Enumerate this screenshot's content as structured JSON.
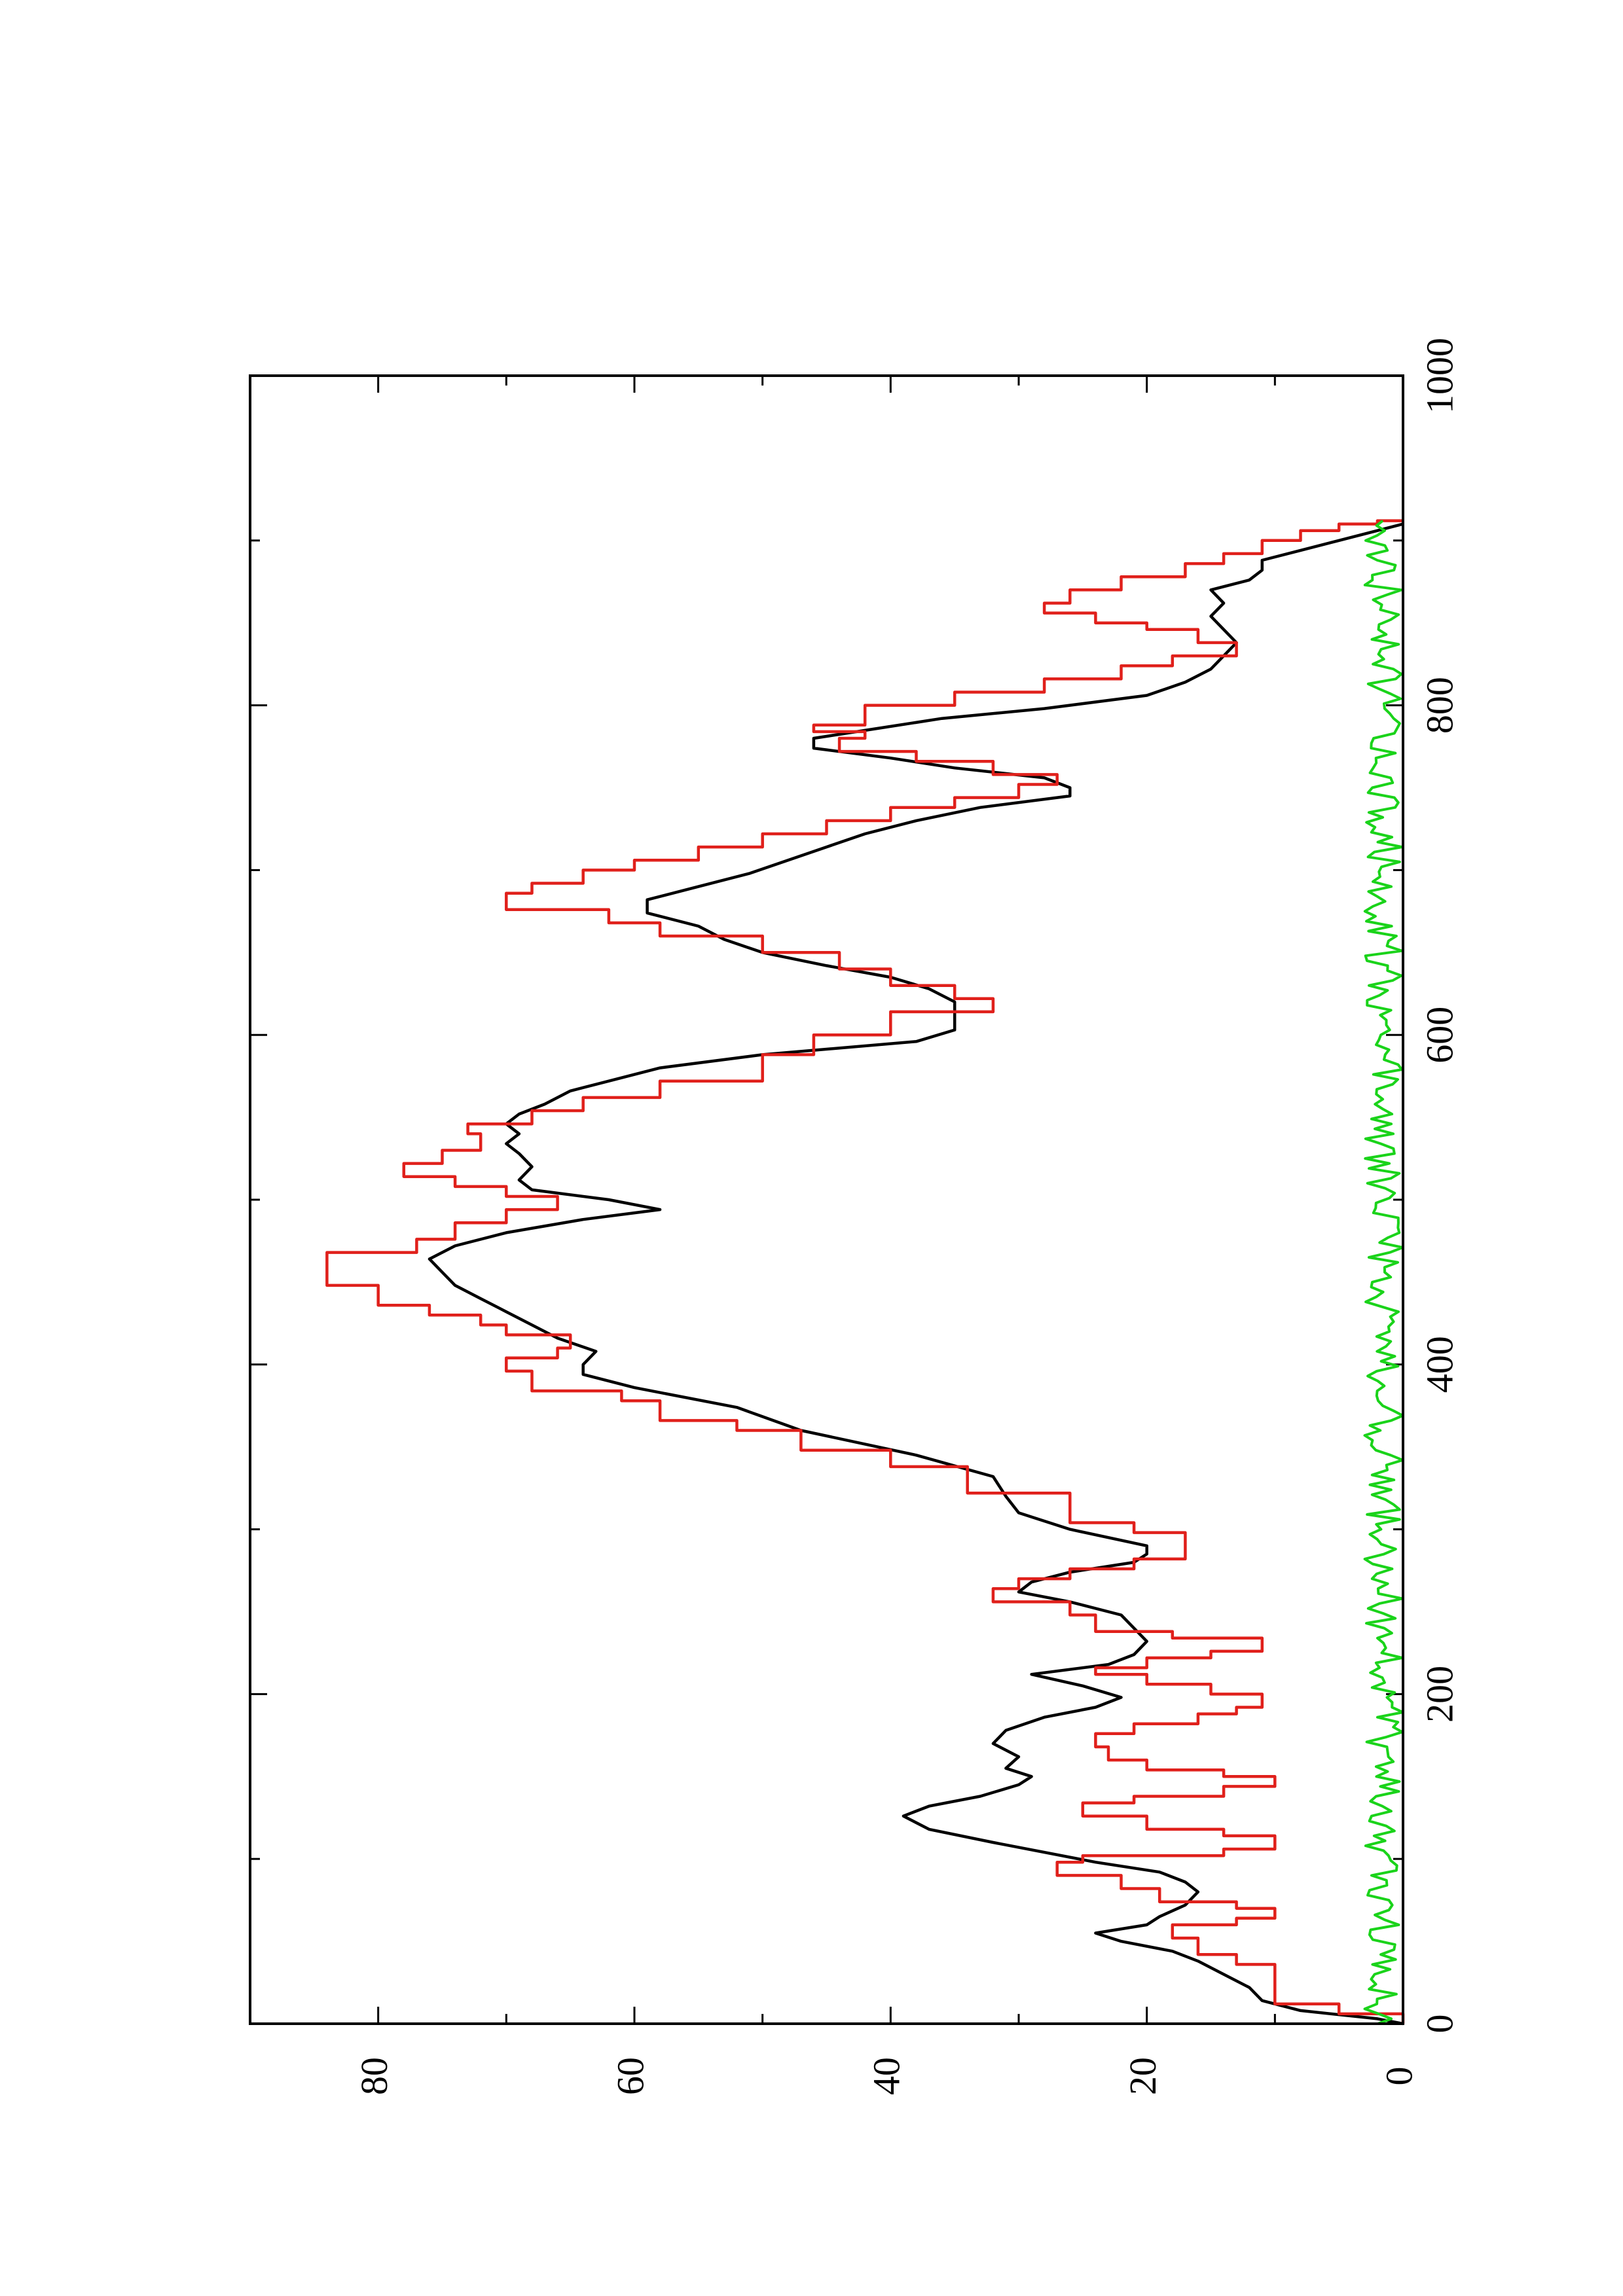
{
  "chart_data": {
    "type": "line",
    "orientation": "rotated-90-ccw",
    "title": "",
    "xlabel": "",
    "ylabel": "",
    "xlim": [
      0,
      1000
    ],
    "ylim": [
      0,
      90
    ],
    "grid": false,
    "legend": "none",
    "x_ticks": [
      0,
      200,
      400,
      600,
      800,
      1000
    ],
    "x_tick_labels": [
      "0",
      "200",
      "400",
      "600",
      "800",
      "1000"
    ],
    "x_minor_ticks": [
      100,
      300,
      500,
      700,
      900
    ],
    "y_ticks": [
      0,
      20,
      40,
      60,
      80
    ],
    "y_tick_labels": [
      "0",
      "20",
      "40",
      "60",
      "80"
    ],
    "y_minor_ticks": [
      10,
      30,
      50,
      70
    ],
    "series": [
      {
        "color": "#000000",
        "kind": "smooth",
        "points": [
          [
            0,
            0
          ],
          [
            3,
            2
          ],
          [
            8,
            8
          ],
          [
            14,
            11
          ],
          [
            22,
            12
          ],
          [
            30,
            14
          ],
          [
            38,
            16
          ],
          [
            44,
            18
          ],
          [
            50,
            22
          ],
          [
            55,
            24
          ],
          [
            60,
            20
          ],
          [
            65,
            19
          ],
          [
            72,
            17
          ],
          [
            80,
            16
          ],
          [
            86,
            17
          ],
          [
            92,
            19
          ],
          [
            98,
            24
          ],
          [
            104,
            28
          ],
          [
            110,
            32
          ],
          [
            118,
            37
          ],
          [
            126,
            39
          ],
          [
            132,
            37
          ],
          [
            138,
            33
          ],
          [
            145,
            30
          ],
          [
            150,
            29
          ],
          [
            155,
            31
          ],
          [
            162,
            30
          ],
          [
            170,
            32
          ],
          [
            178,
            31
          ],
          [
            186,
            28
          ],
          [
            192,
            24
          ],
          [
            198,
            22
          ],
          [
            205,
            25
          ],
          [
            212,
            29
          ],
          [
            218,
            23
          ],
          [
            224,
            21
          ],
          [
            232,
            20
          ],
          [
            240,
            21
          ],
          [
            248,
            22
          ],
          [
            256,
            26
          ],
          [
            262,
            30
          ],
          [
            268,
            29
          ],
          [
            274,
            26
          ],
          [
            280,
            21
          ],
          [
            285,
            20
          ],
          [
            290,
            20
          ],
          [
            300,
            26
          ],
          [
            310,
            30
          ],
          [
            320,
            31
          ],
          [
            332,
            32
          ],
          [
            345,
            38
          ],
          [
            360,
            47
          ],
          [
            374,
            52
          ],
          [
            386,
            60
          ],
          [
            394,
            64
          ],
          [
            400,
            64
          ],
          [
            408,
            63
          ],
          [
            416,
            66
          ],
          [
            424,
            68
          ],
          [
            432,
            70
          ],
          [
            440,
            72
          ],
          [
            448,
            74
          ],
          [
            456,
            75
          ],
          [
            464,
            76
          ],
          [
            472,
            74
          ],
          [
            480,
            70
          ],
          [
            488,
            64
          ],
          [
            494,
            58
          ],
          [
            500,
            62
          ],
          [
            506,
            68
          ],
          [
            512,
            69
          ],
          [
            520,
            68
          ],
          [
            528,
            69
          ],
          [
            534,
            70
          ],
          [
            540,
            69
          ],
          [
            546,
            70
          ],
          [
            552,
            69
          ],
          [
            558,
            67
          ],
          [
            566,
            65
          ],
          [
            574,
            61
          ],
          [
            580,
            58
          ],
          [
            588,
            50
          ],
          [
            596,
            38
          ],
          [
            603,
            35
          ],
          [
            612,
            35
          ],
          [
            620,
            35
          ],
          [
            628,
            37
          ],
          [
            635,
            40
          ],
          [
            642,
            45
          ],
          [
            650,
            50
          ],
          [
            658,
            53
          ],
          [
            666,
            55
          ],
          [
            674,
            59
          ],
          [
            682,
            59
          ],
          [
            690,
            55
          ],
          [
            698,
            51
          ],
          [
            706,
            48
          ],
          [
            714,
            45
          ],
          [
            722,
            42
          ],
          [
            730,
            38
          ],
          [
            738,
            33
          ],
          [
            745,
            26
          ],
          [
            750,
            26
          ],
          [
            756,
            28
          ],
          [
            762,
            35
          ],
          [
            768,
            40
          ],
          [
            774,
            46
          ],
          [
            780,
            46
          ],
          [
            786,
            41
          ],
          [
            792,
            36
          ],
          [
            798,
            28
          ],
          [
            806,
            20
          ],
          [
            814,
            17
          ],
          [
            822,
            15
          ],
          [
            830,
            14
          ],
          [
            838,
            13
          ],
          [
            846,
            14
          ],
          [
            854,
            15
          ],
          [
            862,
            14
          ],
          [
            870,
            15
          ],
          [
            876,
            12
          ],
          [
            882,
            11
          ],
          [
            888,
            11
          ],
          [
            894,
            8
          ],
          [
            900,
            5
          ],
          [
            906,
            2
          ],
          [
            910,
            0
          ]
        ]
      },
      {
        "color": "#e0201b",
        "kind": "step",
        "points": [
          [
            0,
            0
          ],
          [
            6,
            5
          ],
          [
            12,
            10
          ],
          [
            36,
            13
          ],
          [
            42,
            16
          ],
          [
            52,
            18
          ],
          [
            60,
            13
          ],
          [
            64,
            10
          ],
          [
            70,
            13
          ],
          [
            74,
            19
          ],
          [
            82,
            22
          ],
          [
            90,
            27
          ],
          [
            98,
            25
          ],
          [
            102,
            14
          ],
          [
            106,
            10
          ],
          [
            114,
            14
          ],
          [
            118,
            20
          ],
          [
            126,
            25
          ],
          [
            134,
            21
          ],
          [
            138,
            14
          ],
          [
            144,
            10
          ],
          [
            150,
            14
          ],
          [
            154,
            20
          ],
          [
            160,
            23
          ],
          [
            168,
            24
          ],
          [
            176,
            21
          ],
          [
            182,
            16
          ],
          [
            188,
            13
          ],
          [
            192,
            11
          ],
          [
            200,
            15
          ],
          [
            206,
            20
          ],
          [
            212,
            24
          ],
          [
            216,
            20
          ],
          [
            222,
            15
          ],
          [
            226,
            11
          ],
          [
            234,
            18
          ],
          [
            238,
            24
          ],
          [
            248,
            26
          ],
          [
            256,
            32
          ],
          [
            264,
            30
          ],
          [
            270,
            26
          ],
          [
            276,
            21
          ],
          [
            282,
            17
          ],
          [
            290,
            17
          ],
          [
            298,
            21
          ],
          [
            304,
            26
          ],
          [
            316,
            26
          ],
          [
            322,
            34
          ],
          [
            338,
            40
          ],
          [
            348,
            47
          ],
          [
            360,
            52
          ],
          [
            366,
            58
          ],
          [
            378,
            61
          ],
          [
            384,
            68
          ],
          [
            396,
            70
          ],
          [
            404,
            66
          ],
          [
            410,
            65
          ],
          [
            418,
            70
          ],
          [
            424,
            72
          ],
          [
            430,
            76
          ],
          [
            436,
            80
          ],
          [
            448,
            84
          ],
          [
            460,
            84
          ],
          [
            468,
            77
          ],
          [
            476,
            74
          ],
          [
            486,
            70
          ],
          [
            494,
            66
          ],
          [
            502,
            70
          ],
          [
            508,
            74
          ],
          [
            514,
            78
          ],
          [
            522,
            75
          ],
          [
            530,
            72
          ],
          [
            540,
            73
          ],
          [
            546,
            68
          ],
          [
            554,
            64
          ],
          [
            562,
            58
          ],
          [
            572,
            50
          ],
          [
            580,
            50
          ],
          [
            588,
            46
          ],
          [
            600,
            40
          ],
          [
            614,
            32
          ],
          [
            622,
            35
          ],
          [
            630,
            40
          ],
          [
            640,
            44
          ],
          [
            650,
            50
          ],
          [
            660,
            58
          ],
          [
            668,
            62
          ],
          [
            676,
            70
          ],
          [
            686,
            68
          ],
          [
            692,
            64
          ],
          [
            700,
            60
          ],
          [
            706,
            55
          ],
          [
            714,
            50
          ],
          [
            722,
            45
          ],
          [
            730,
            40
          ],
          [
            738,
            35
          ],
          [
            744,
            30
          ],
          [
            752,
            27
          ],
          [
            758,
            32
          ],
          [
            766,
            38
          ],
          [
            772,
            44
          ],
          [
            780,
            42
          ],
          [
            784,
            46
          ],
          [
            788,
            42
          ],
          [
            800,
            35
          ],
          [
            808,
            28
          ],
          [
            816,
            22
          ],
          [
            824,
            18
          ],
          [
            830,
            13
          ],
          [
            838,
            16
          ],
          [
            846,
            20
          ],
          [
            850,
            24
          ],
          [
            856,
            28
          ],
          [
            862,
            26
          ],
          [
            870,
            22
          ],
          [
            878,
            17
          ],
          [
            886,
            14
          ],
          [
            892,
            11
          ],
          [
            900,
            8
          ],
          [
            906,
            5
          ],
          [
            910,
            2
          ],
          [
            912,
            0
          ]
        ]
      },
      {
        "color": "#1ad31a",
        "kind": "noise",
        "x_range": [
          0,
          912
        ],
        "y_range": [
          0,
          3
        ],
        "step": 3
      }
    ]
  }
}
